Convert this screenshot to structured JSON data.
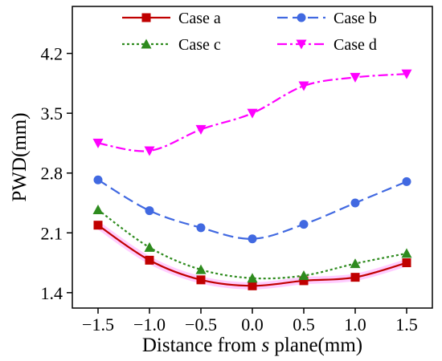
{
  "chart_data": {
    "type": "line",
    "xlabel_prefix": "Distance from ",
    "xlabel_italic": "s",
    "xlabel_suffix": " plane(mm)",
    "ylabel": "PWD(mm)",
    "xlim": [
      -1.75,
      1.75
    ],
    "ylim": [
      1.22,
      4.75
    ],
    "x_ticks": [
      "−1.5",
      "−1.0",
      "−0.5",
      "0.0",
      "0.5",
      "1.0",
      "1.5"
    ],
    "x_tick_values": [
      -1.5,
      -1.0,
      -0.5,
      0.0,
      0.5,
      1.0,
      1.5
    ],
    "y_ticks": [
      "1.4",
      "2.1",
      "2.8",
      "3.5",
      "4.2"
    ],
    "y_tick_values": [
      1.4,
      2.1,
      2.8,
      3.5,
      4.2
    ],
    "x": [
      -1.5,
      -1.0,
      -0.5,
      0.0,
      0.5,
      1.0,
      1.5
    ],
    "legend_placement": "top",
    "series": [
      {
        "name": "Case a",
        "values": [
          2.19,
          1.78,
          1.55,
          1.48,
          1.54,
          1.58,
          1.75
        ],
        "color": "#c00000",
        "marker": "square",
        "dash": "solid",
        "glow": "#ffc0ff"
      },
      {
        "name": "Case b",
        "values": [
          2.72,
          2.36,
          2.16,
          2.03,
          2.2,
          2.45,
          2.7
        ],
        "color": "#4169e1",
        "marker": "circle",
        "dash": "dashed",
        "glow": ""
      },
      {
        "name": "Case c",
        "values": [
          2.37,
          1.93,
          1.67,
          1.57,
          1.6,
          1.74,
          1.86
        ],
        "color": "#2e8b1e",
        "marker": "triangle-up",
        "dash": "dotted",
        "glow": ""
      },
      {
        "name": "Case d",
        "values": [
          3.15,
          3.06,
          3.31,
          3.5,
          3.82,
          3.92,
          3.96
        ],
        "color": "#ff00ff",
        "marker": "triangle-down",
        "dash": "dashdot",
        "glow": ""
      }
    ]
  }
}
